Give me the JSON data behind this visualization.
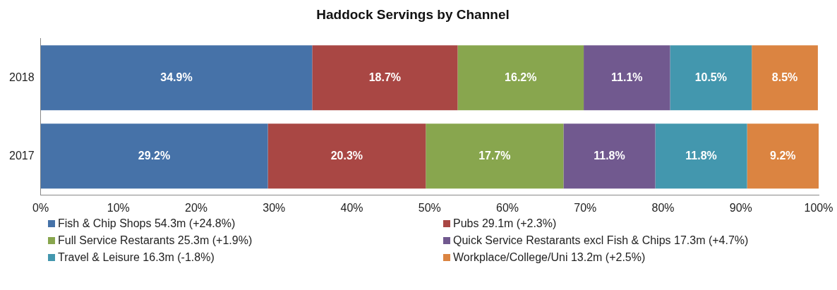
{
  "chart_data": {
    "type": "bar",
    "title": "Haddock Servings by Channel",
    "orientation": "horizontal",
    "stacked": true,
    "categories": [
      "2018",
      "2017"
    ],
    "series": [
      {
        "name": "Fish & Chip Shops 54.3m (+24.8%)",
        "color": "#4672a8",
        "values": [
          34.9,
          29.2
        ],
        "value_labels": [
          "34.9%",
          "29.2%"
        ]
      },
      {
        "name": "Pubs 29.1m (+2.3%)",
        "color": "#a94744",
        "values": [
          18.7,
          20.3
        ],
        "value_labels": [
          "18.7%",
          "20.3%"
        ]
      },
      {
        "name": "Full Service Restarants 25.3m (+1.9%)",
        "color": "#88a64e",
        "values": [
          16.2,
          17.7
        ],
        "value_labels": [
          "16.2%",
          "17.7%"
        ]
      },
      {
        "name": "Quick Service Restarants excl Fish & Chips 17.3m (+4.7%)",
        "color": "#71598f",
        "values": [
          11.1,
          11.8
        ],
        "value_labels": [
          "11.1%",
          "11.8%"
        ]
      },
      {
        "name": "Travel & Leisure 16.3m (-1.8%)",
        "color": "#4397ae",
        "values": [
          10.5,
          11.8
        ],
        "value_labels": [
          "10.5%",
          "11.8%"
        ]
      },
      {
        "name": "Workplace/College/Uni 13.2m (+2.5%)",
        "color": "#db8441",
        "values": [
          8.5,
          9.2
        ],
        "value_labels": [
          "8.5%",
          "9.2%"
        ]
      }
    ],
    "xlim": [
      0,
      100
    ],
    "xticks": [
      {
        "value": 0,
        "label": "0%"
      },
      {
        "value": 10,
        "label": "10%"
      },
      {
        "value": 20,
        "label": "20%"
      },
      {
        "value": 30,
        "label": "30%"
      },
      {
        "value": 40,
        "label": "40%"
      },
      {
        "value": 50,
        "label": "50%"
      },
      {
        "value": 60,
        "label": "60%"
      },
      {
        "value": 70,
        "label": "70%"
      },
      {
        "value": 80,
        "label": "80%"
      },
      {
        "value": 90,
        "label": "90%"
      },
      {
        "value": 100,
        "label": "100%"
      }
    ],
    "grid": false,
    "legend": "bottom"
  }
}
